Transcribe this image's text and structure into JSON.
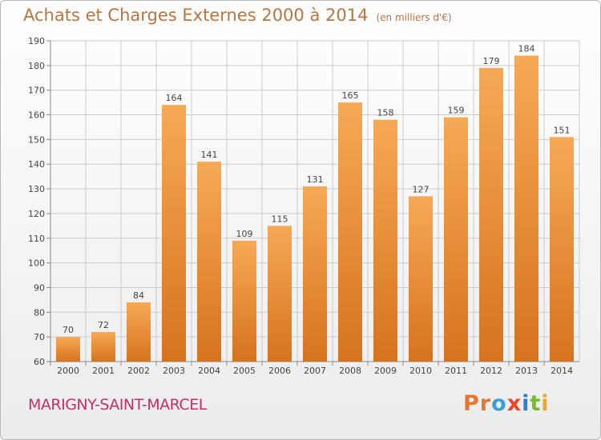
{
  "header": {
    "title": "Achats et Charges Externes 2000 à 2014",
    "unit": "(en milliers d'€)"
  },
  "footer": {
    "city": "MARIGNY-SAINT-MARCEL",
    "logo": "Proxiti"
  },
  "colors": {
    "bar_top": "#f7a955",
    "bar_bottom": "#d6731e",
    "grid": "#cccccc",
    "title": "#b8753f",
    "city": "#c5306a",
    "logo_letters": [
      "#e8772e",
      "#e8772e",
      "#3aa0d8",
      "#e8472e",
      "#2e7fd0",
      "#7ab83a",
      "#e8a82e"
    ]
  },
  "chart_data": {
    "type": "bar",
    "title": "Achats et Charges Externes 2000 à 2014",
    "subtitle": "(en milliers d'€)",
    "categories": [
      "2000",
      "2001",
      "2002",
      "2003",
      "2004",
      "2005",
      "2006",
      "2007",
      "2008",
      "2009",
      "2010",
      "2011",
      "2012",
      "2013",
      "2014"
    ],
    "values": [
      70,
      72,
      84,
      164,
      141,
      109,
      115,
      131,
      165,
      158,
      127,
      159,
      179,
      184,
      151
    ],
    "ylim": [
      60,
      190
    ],
    "yticks": [
      60,
      70,
      80,
      90,
      100,
      110,
      120,
      130,
      140,
      150,
      160,
      170,
      180,
      190
    ],
    "grid": true,
    "xlabel": "",
    "ylabel": ""
  }
}
